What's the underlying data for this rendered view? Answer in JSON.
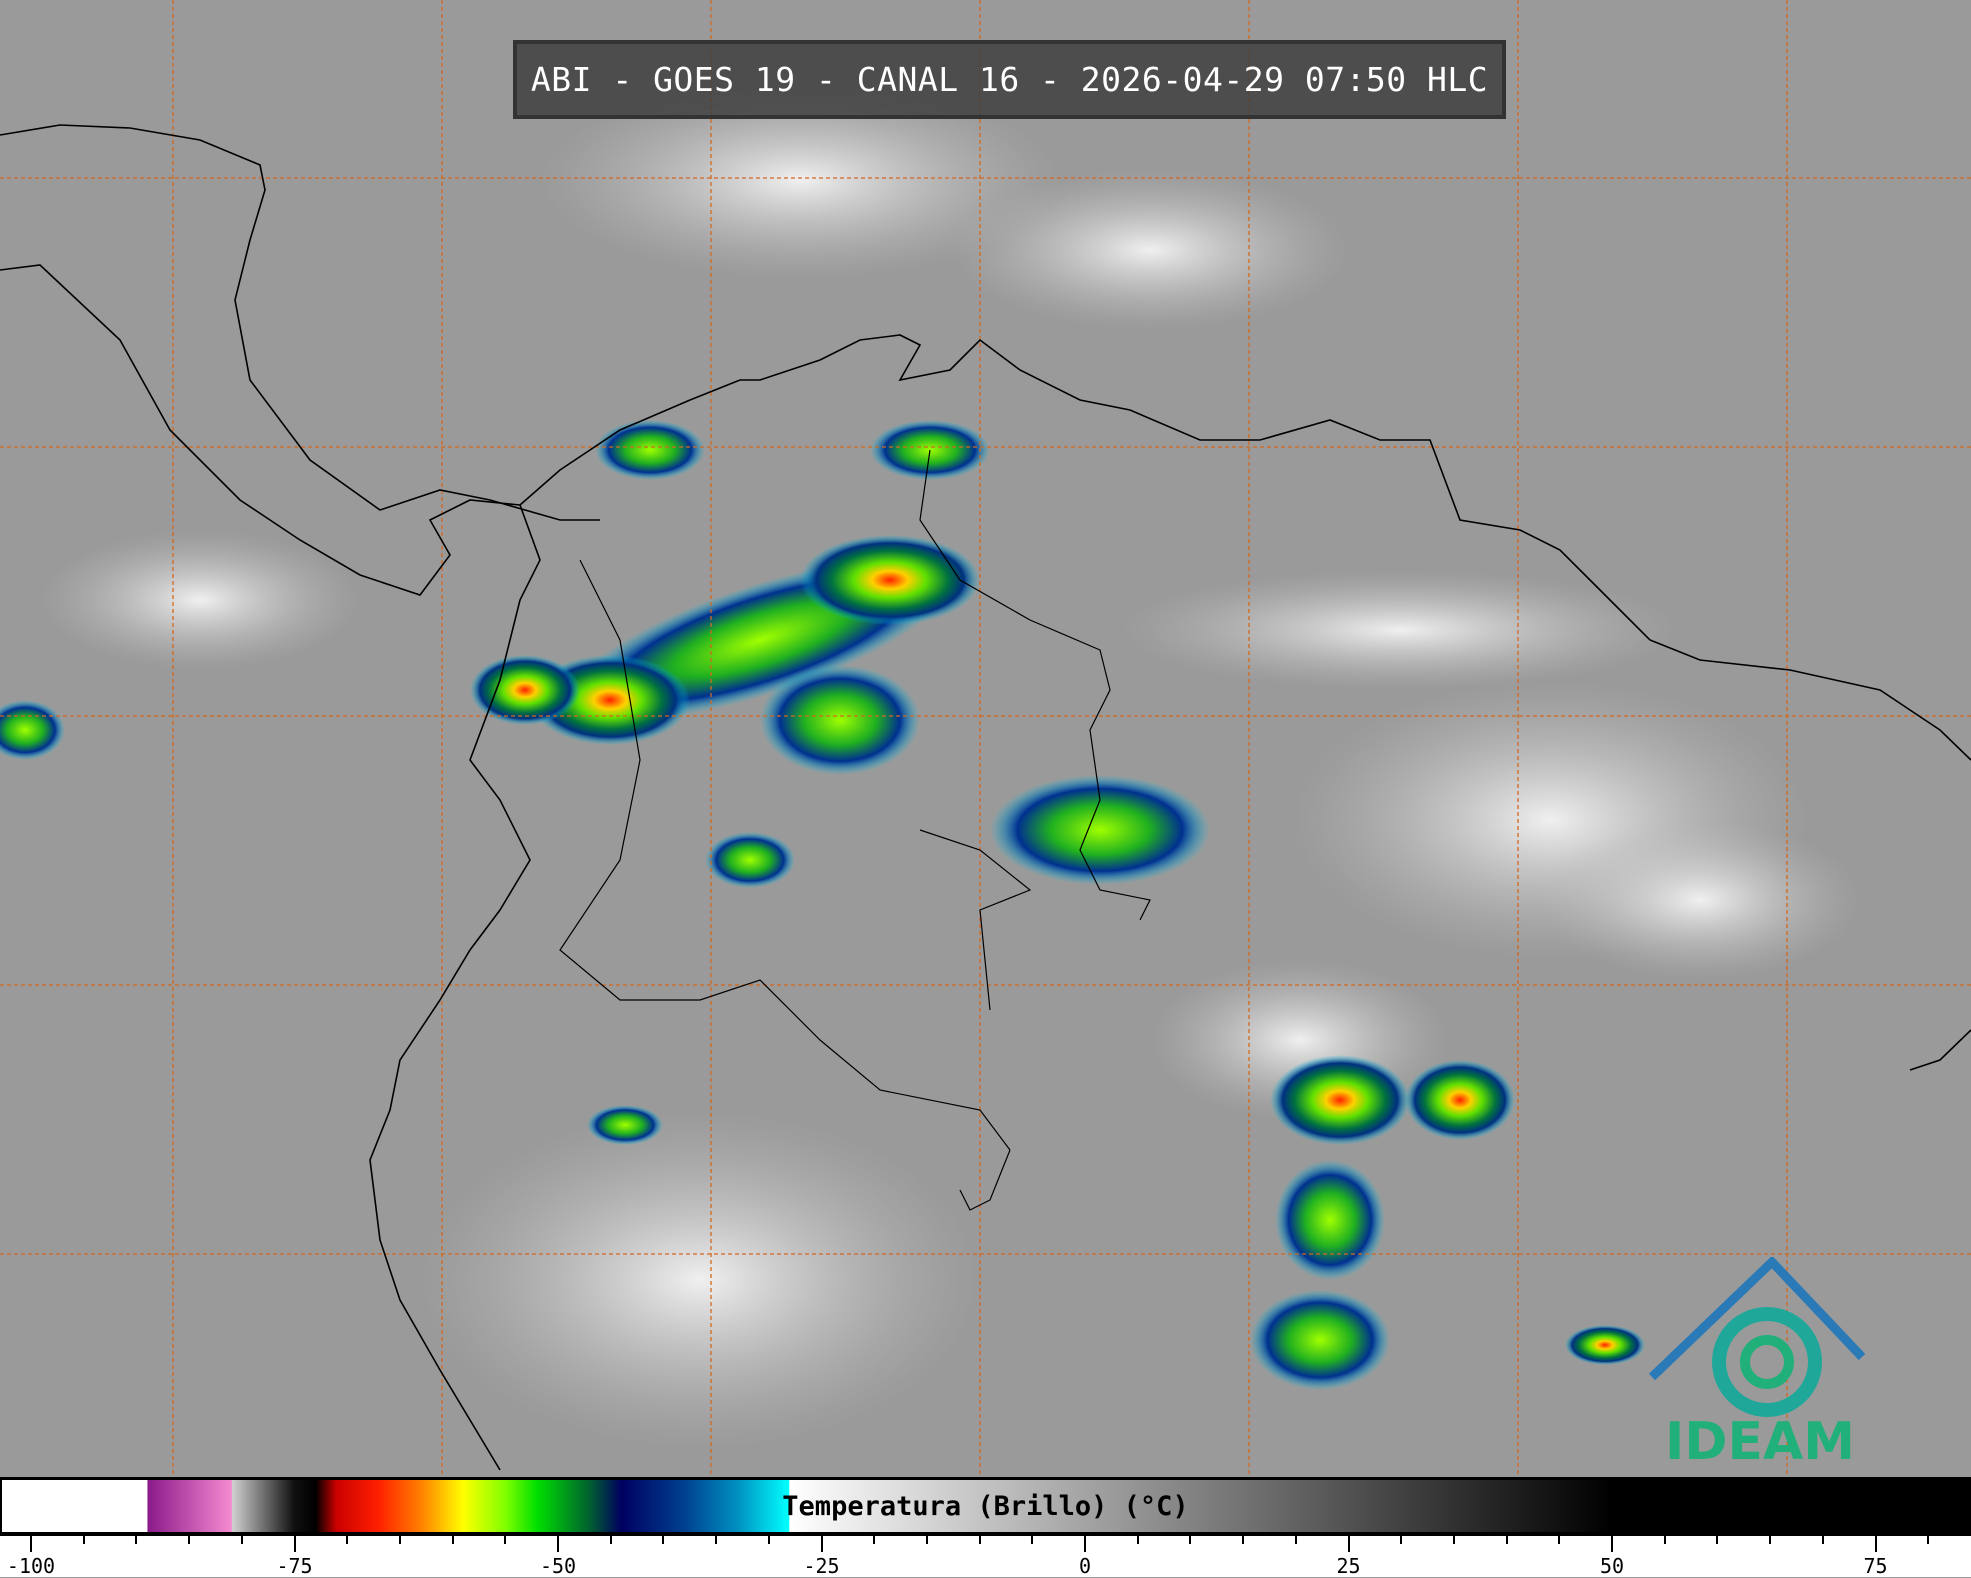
{
  "header": {
    "title": "ABI - GOES 19 - CANAL 16 - 2026-04-29 07:50 HLC"
  },
  "colorbar": {
    "label": "Temperatura (Brillo) (°C)",
    "ticks": [
      {
        "value": -100,
        "label": "-100"
      },
      {
        "value": -75,
        "label": "-75"
      },
      {
        "value": -50,
        "label": "-50"
      },
      {
        "value": -25,
        "label": "-25"
      },
      {
        "value": 0,
        "label": "0"
      },
      {
        "value": 25,
        "label": "25"
      },
      {
        "value": 50,
        "label": "50"
      },
      {
        "value": 75,
        "label": "75"
      }
    ],
    "range": [
      -103,
      83
    ],
    "minor_tick_step": 5,
    "stops": [
      {
        "value": -89,
        "color": "#ffffff"
      },
      {
        "value": -88.9,
        "color": "#8a1a8a"
      },
      {
        "value": -81,
        "color": "#f58ad0"
      },
      {
        "value": -80.9,
        "color": "#d0d0d0"
      },
      {
        "value": -75,
        "color": "#101010"
      },
      {
        "value": -73,
        "color": "#000000"
      },
      {
        "value": -71,
        "color": "#cc0000"
      },
      {
        "value": -67,
        "color": "#ff2000"
      },
      {
        "value": -63,
        "color": "#ff8000"
      },
      {
        "value": -59,
        "color": "#ffff00"
      },
      {
        "value": -55,
        "color": "#80ff00"
      },
      {
        "value": -52,
        "color": "#00e000"
      },
      {
        "value": -47,
        "color": "#006030"
      },
      {
        "value": -44,
        "color": "#000060"
      },
      {
        "value": -38,
        "color": "#004090"
      },
      {
        "value": -33,
        "color": "#0090c0"
      },
      {
        "value": -28.1,
        "color": "#00ffff"
      },
      {
        "value": -28,
        "color": "#ffffff"
      },
      {
        "value": 50,
        "color": "#000000"
      }
    ]
  },
  "logo": {
    "text": "IDEAM",
    "color": "#22b07a"
  },
  "colors": {
    "grid": "#d2691e",
    "coast": "#000000",
    "background": "#9a9a9a"
  }
}
